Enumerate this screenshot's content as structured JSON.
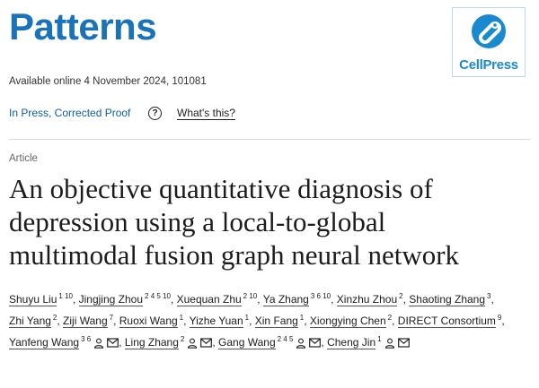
{
  "journal": {
    "name": "Patterns",
    "publisher_logo_text": "CellPress",
    "logo_icon": "cellpress-logo-icon"
  },
  "availability": "Available online 4 November 2024, 101081",
  "status": {
    "label": "In Press, Corrected Proof",
    "help_symbol": "?",
    "help_link": "What's this?"
  },
  "article": {
    "type": "Article",
    "title_lines": [
      "An objective quantitative diagnosis of",
      "depression using a local-to-global",
      "multimodal fusion graph neural network"
    ]
  },
  "authors": [
    {
      "name": "Shuyu Liu",
      "aff": "1 10",
      "sep": ", "
    },
    {
      "name": "Jingjing Zhou",
      "aff": "2 4 5 10",
      "sep": ", "
    },
    {
      "name": "Xuequan Zhu",
      "aff": "2 10",
      "sep": ", "
    },
    {
      "name": "Ya Zhang",
      "aff": "3 6 10",
      "sep": ", "
    },
    {
      "name": "Xinzhu Zhou",
      "aff": "2",
      "sep": ", "
    },
    {
      "name": "Shaoting Zhang",
      "aff": "3",
      "sep": ", "
    },
    {
      "name": "Zhi Yang",
      "aff": "2",
      "sep": ", "
    },
    {
      "name": "Ziji Wang",
      "aff": "7",
      "sep": ", "
    },
    {
      "name": "Ruoxi Wang",
      "aff": "1",
      "sep": ", "
    },
    {
      "name": "Yizhe Yuan",
      "aff": "1",
      "sep": ", "
    },
    {
      "name": "Xin Fang",
      "aff": "1",
      "sep": ", "
    },
    {
      "name": "Xiongying Chen",
      "aff": "2",
      "sep": ", "
    },
    {
      "name": "DIRECT Consortium",
      "aff": "9",
      "sep": ", "
    },
    {
      "name": "Yanfeng Wang",
      "aff": "3 6",
      "icons": true,
      "sep": ", "
    },
    {
      "name": "Ling Zhang",
      "aff": "2",
      "icons": true,
      "sep": ", "
    },
    {
      "name": "Gang Wang",
      "aff": "2 4 5",
      "icons": true,
      "sep": ", "
    },
    {
      "name": "Cheng Jin",
      "aff": "1",
      "icons": true,
      "sep": ""
    }
  ],
  "colors": {
    "brand": "#1a73b9",
    "link": "#0b5ea8",
    "logo": "#1a8ad0"
  }
}
